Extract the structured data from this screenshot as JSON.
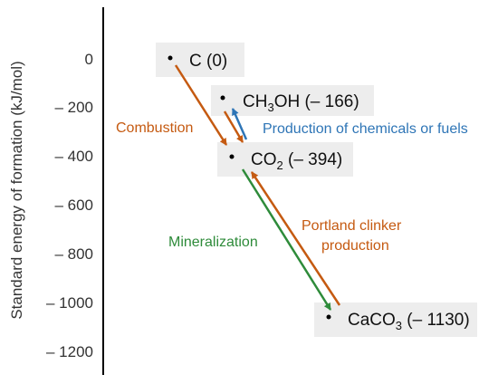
{
  "axis": {
    "label": "Standard energy of formation (kJ/mol)",
    "ticks": [
      "0",
      "– 200",
      "– 400",
      "– 600",
      "– 800",
      "– 1000",
      "– 1200"
    ]
  },
  "compounds": {
    "c": {
      "text": "C (0)"
    },
    "ch3oh": {
      "p1": "CH",
      "sub": "3",
      "p2": "OH (– 166)"
    },
    "co2": {
      "p1": "CO",
      "sub": "2",
      "p2": " (– 394)"
    },
    "caco3": {
      "p1": "CaCO",
      "sub": "3",
      "p2": " (– 1130)"
    }
  },
  "arrows": {
    "combustion": {
      "label": "Combustion",
      "color": "#C55A11"
    },
    "production": {
      "label": "Production of chemicals or fuels",
      "color": "#2E75B6"
    },
    "mineralization": {
      "label": "Mineralization",
      "color": "#2E8B3A"
    },
    "portland": {
      "line1": "Portland clinker",
      "line2": "production",
      "color": "#C55A11"
    }
  },
  "colors": {
    "box_fill": "#EDEDED",
    "axis": "#000000",
    "dot": "#000000"
  }
}
